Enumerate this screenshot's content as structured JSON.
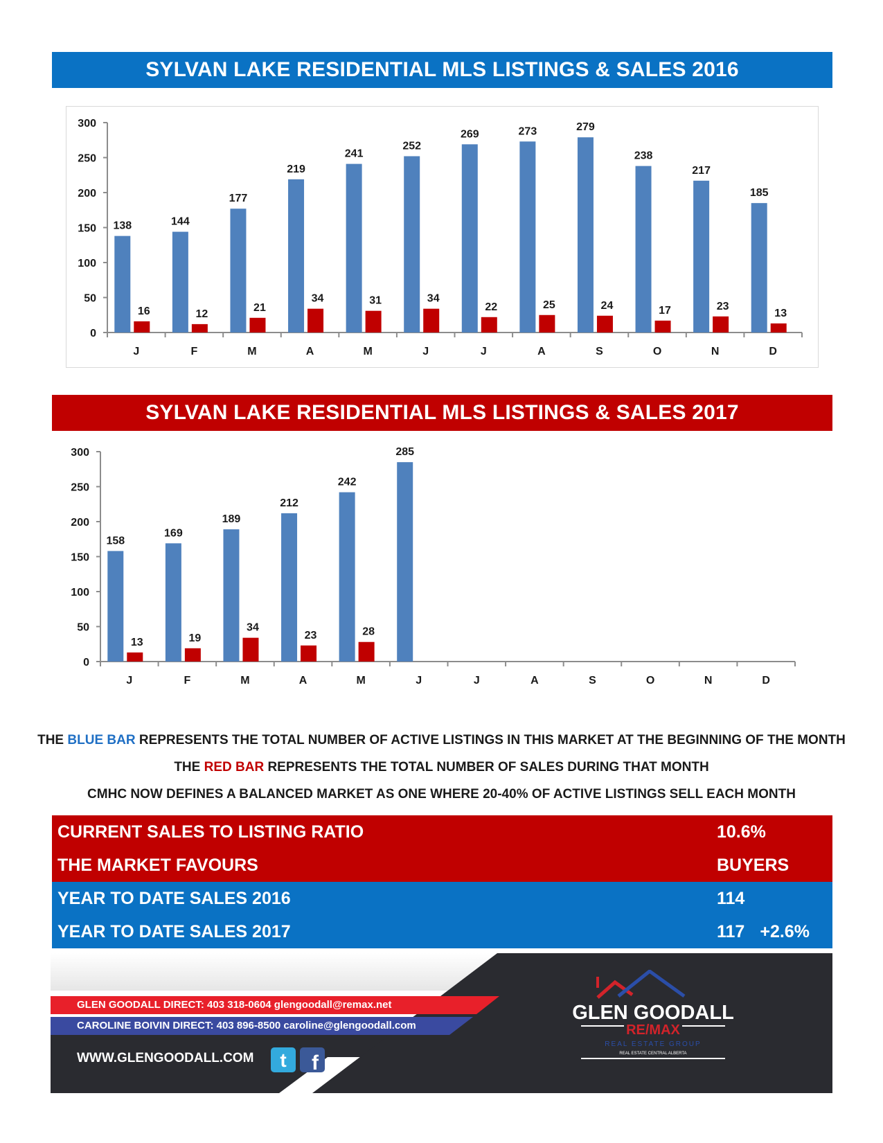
{
  "chart_data": [
    {
      "type": "bar",
      "title": "SYLVAN LAKE RESIDENTIAL MLS LISTINGS & SALES 2016",
      "categories": [
        "J",
        "F",
        "M",
        "A",
        "M",
        "J",
        "J",
        "A",
        "S",
        "O",
        "N",
        "D"
      ],
      "series": [
        {
          "values": [
            138,
            144,
            177,
            219,
            241,
            252,
            269,
            273,
            279,
            238,
            217,
            185
          ]
        },
        {
          "values": [
            16,
            12,
            21,
            34,
            31,
            34,
            22,
            25,
            24,
            17,
            23,
            13
          ]
        }
      ],
      "ylim": [
        0,
        300
      ],
      "yticks": [
        0,
        50,
        100,
        150,
        200,
        250,
        300
      ],
      "colors": [
        "#4f81bd",
        "#c00000"
      ],
      "grid": false,
      "data_labels": true
    },
    {
      "type": "bar",
      "title": "SYLVAN LAKE RESIDENTIAL MLS LISTINGS & SALES 2017",
      "categories": [
        "J",
        "F",
        "M",
        "A",
        "M",
        "J",
        "J",
        "A",
        "S",
        "O",
        "N",
        "D"
      ],
      "series": [
        {
          "values": [
            158,
            169,
            189,
            212,
            242,
            285,
            null,
            null,
            null,
            null,
            null,
            null
          ]
        },
        {
          "values": [
            13,
            19,
            34,
            23,
            28,
            null,
            null,
            null,
            null,
            null,
            null,
            null
          ]
        }
      ],
      "ylim": [
        0,
        300
      ],
      "yticks": [
        0,
        50,
        100,
        150,
        200,
        250,
        300
      ],
      "colors": [
        "#4f81bd",
        "#c00000"
      ],
      "grid": false,
      "data_labels": true
    }
  ],
  "legend": {
    "line1_prefix": "THE ",
    "line1_highlight": "BLUE BAR",
    "line1_suffix": " REPRESENTS THE TOTAL NUMBER OF ACTIVE LISTINGS IN THIS MARKET AT THE BEGINNING OF THE MONTH",
    "line2_prefix": "THE ",
    "line2_highlight": "RED BAR",
    "line2_suffix": " REPRESENTS THE TOTAL NUMBER OF SALES DURING THAT MONTH",
    "line3": "CMHC NOW DEFINES A BALANCED MARKET AS ONE WHERE 20-40% OF ACTIVE LISTINGS SELL EACH MONTH"
  },
  "stats": {
    "ratio_label": "CURRENT SALES TO LISTING RATIO",
    "ratio_value": "10.6%",
    "favours_label": "THE MARKET FAVOURS",
    "favours_value": "BUYERS",
    "ytd2016_label": "YEAR TO DATE SALES 2016",
    "ytd2016_value": "114",
    "ytd2017_label": "YEAR TO DATE SALES 2017",
    "ytd2017_value": "117",
    "ytd2017_change": "+2.6%"
  },
  "footer": {
    "contact1": "GLEN GOODALL  DIRECT: 403 318-0604  glengoodall@remax.net",
    "contact2": "CAROLINE BOIVIN DIRECT: 403 896-8500 caroline@glengoodall.com",
    "website": "WWW.GLENGOODALL.COM",
    "logo_name": "GLEN GOODALL",
    "logo_brand": "RE/MAX",
    "logo_group": "REAL ESTATE GROUP",
    "logo_region": "REAL ESTATE CENTRAL ALBERTA",
    "social_icons": [
      "twitter-icon",
      "facebook-icon"
    ],
    "colors": {
      "red": "#e8202a",
      "blue": "#3a4aa0",
      "dark": "#2a2b30"
    }
  }
}
